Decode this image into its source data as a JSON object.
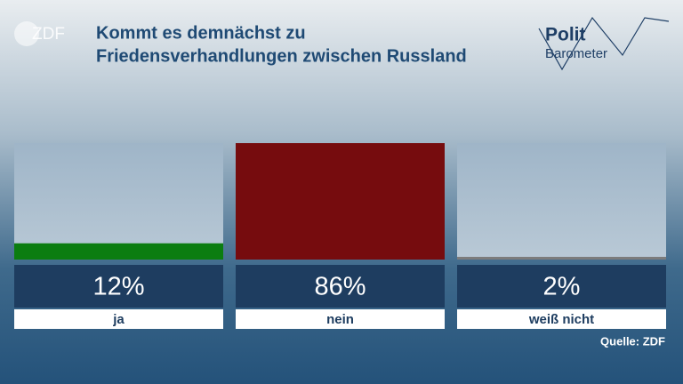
{
  "header": {
    "logo": "ZDF",
    "brand": [
      "Polit",
      "Barometer"
    ]
  },
  "chart_data": {
    "type": "bar",
    "title": [
      "Kommt es demnächst zu",
      "Friedensverhandlungen zwischen Russland"
    ],
    "categories": [
      "ja",
      "nein",
      "weiß nicht"
    ],
    "values": [
      12,
      86,
      2
    ],
    "value_labels": [
      "12%",
      "86%",
      "2%"
    ],
    "colors": [
      "#0b7d10",
      "#760c0e",
      "#7c7c7c"
    ],
    "ylim": [
      0,
      86
    ],
    "source": "Quelle: ZDF"
  }
}
